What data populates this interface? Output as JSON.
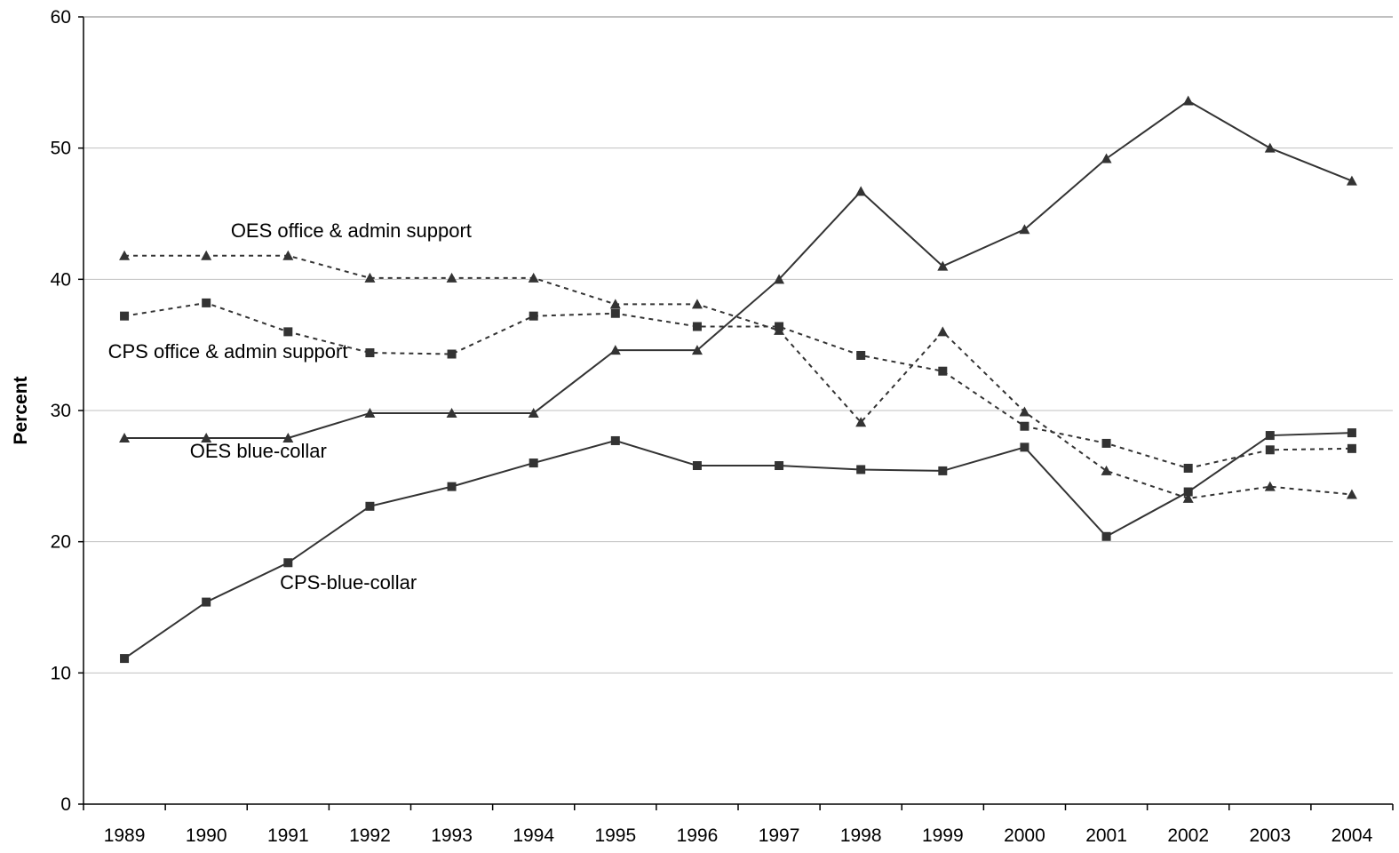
{
  "chart_data": {
    "type": "line",
    "title": "",
    "xlabel": "",
    "ylabel": "Percent",
    "ylim": [
      0,
      60
    ],
    "yticks": [
      0,
      10,
      20,
      30,
      40,
      50,
      60
    ],
    "grid": true,
    "legend": "none",
    "x": [
      1989,
      1990,
      1991,
      1992,
      1993,
      1994,
      1995,
      1996,
      1997,
      1998,
      1999,
      2000,
      2001,
      2002,
      2003,
      2004
    ],
    "series": [
      {
        "name": "OES office & admin support",
        "style": "dashed",
        "marker": "triangle",
        "color": "#333333",
        "values": [
          41.8,
          41.8,
          41.8,
          40.1,
          40.1,
          40.1,
          38.1,
          38.1,
          36.1,
          29.1,
          36.0,
          29.9,
          25.4,
          23.3,
          24.2,
          23.6
        ]
      },
      {
        "name": "CPS office & admin support",
        "style": "dashed",
        "marker": "square",
        "color": "#333333",
        "values": [
          37.2,
          38.2,
          36.0,
          34.4,
          34.3,
          37.2,
          37.4,
          36.4,
          36.4,
          34.2,
          33.0,
          28.8,
          27.5,
          25.6,
          27.0,
          27.1
        ]
      },
      {
        "name": "OES blue-collar",
        "style": "solid",
        "marker": "triangle",
        "color": "#333333",
        "values": [
          27.9,
          27.9,
          27.9,
          29.8,
          29.8,
          29.8,
          34.6,
          34.6,
          40.0,
          46.7,
          41.0,
          43.8,
          49.2,
          53.6,
          50.0,
          47.5
        ]
      },
      {
        "name": "CPS-blue-collar",
        "style": "solid",
        "marker": "square",
        "color": "#333333",
        "values": [
          11.1,
          15.4,
          18.4,
          22.7,
          24.2,
          26.0,
          27.7,
          25.8,
          25.8,
          25.5,
          25.4,
          27.2,
          20.4,
          23.8,
          28.1,
          28.3
        ]
      }
    ],
    "annotations": [
      {
        "text": "OES office & admin support",
        "x": 1990.3,
        "y": 43.2
      },
      {
        "text": "CPS office & admin support",
        "x": 1988.8,
        "y": 34.0
      },
      {
        "text": "OES blue-collar",
        "x": 1989.8,
        "y": 26.4
      },
      {
        "text": "CPS-blue-collar",
        "x": 1990.9,
        "y": 16.4
      }
    ],
    "colors": {
      "grid": "#c0c0c0",
      "axis": "#000000",
      "line": "#333333"
    }
  }
}
